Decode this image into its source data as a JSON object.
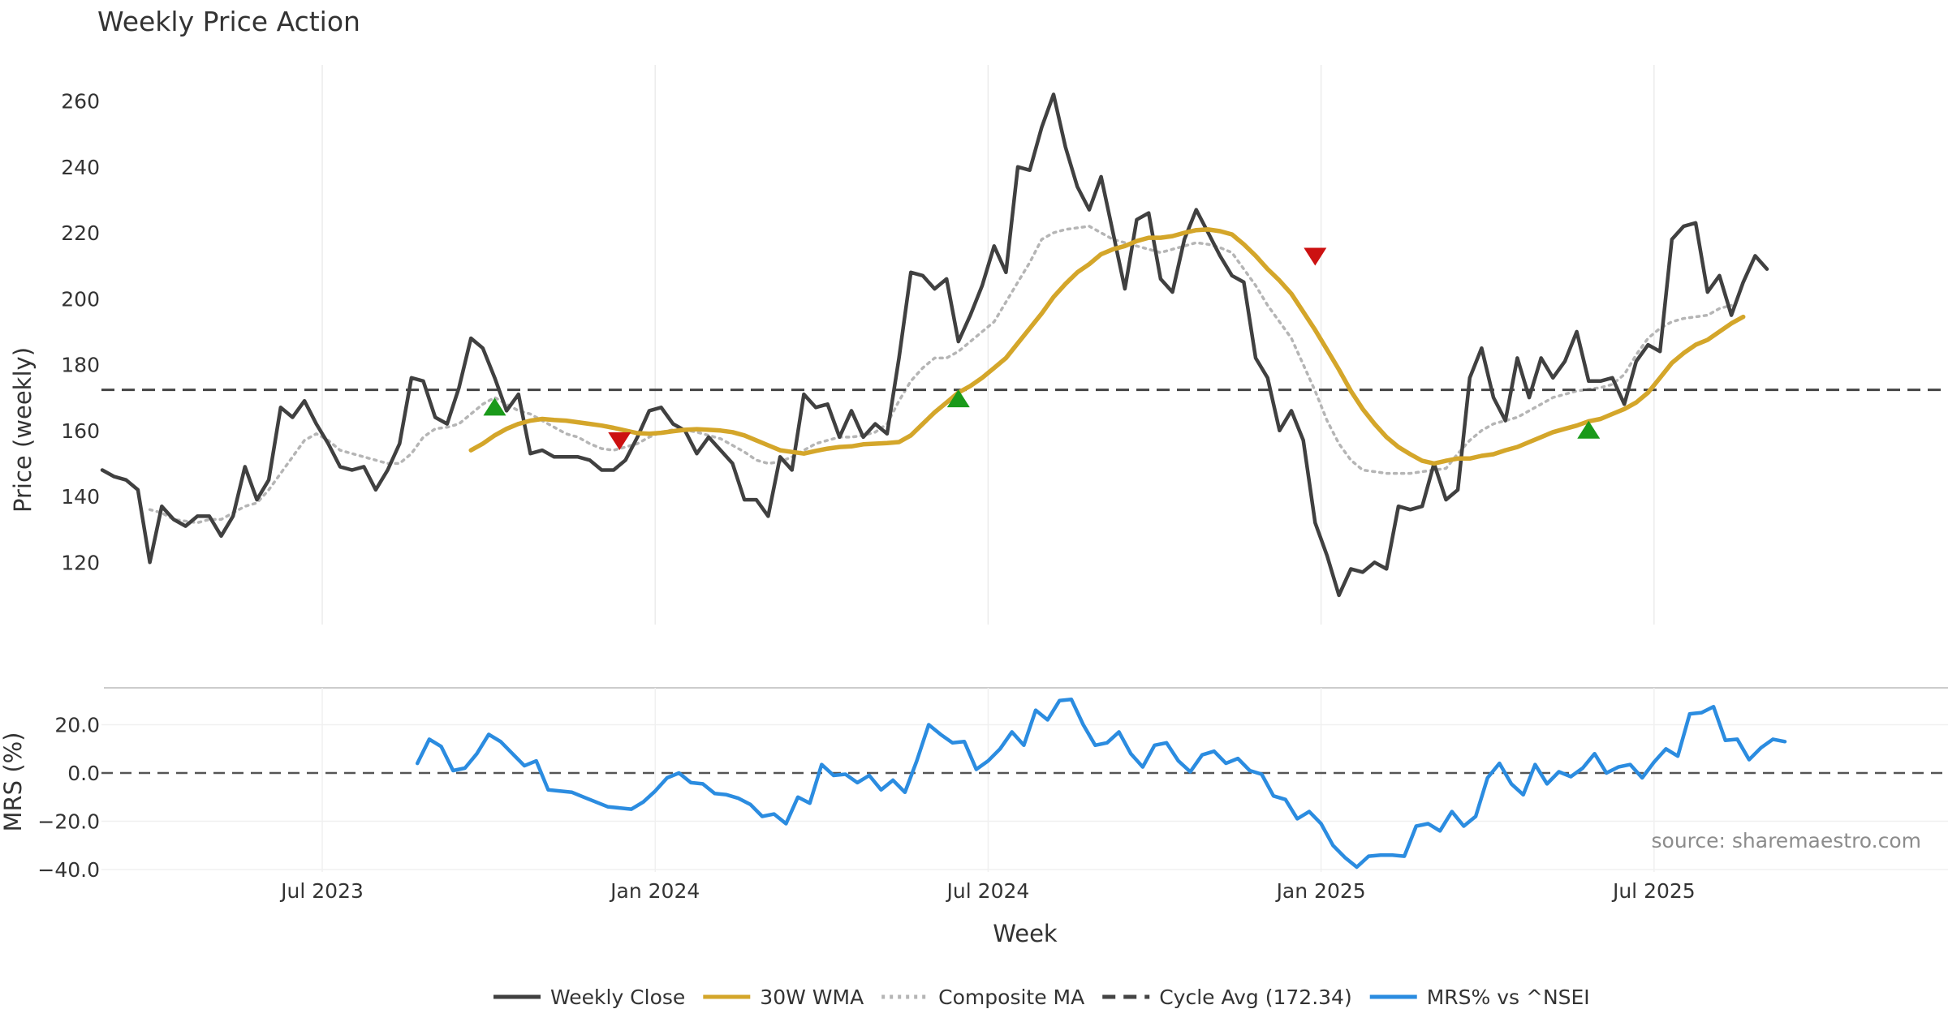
{
  "chart_data": [
    {
      "type": "line",
      "title": "Weekly Price Action",
      "xlabel": "Week",
      "ylabel": "Price (weekly)",
      "ylim": [
        100,
        270
      ],
      "yticks": [
        120,
        140,
        160,
        180,
        200,
        220,
        240,
        260
      ],
      "xlim": [
        0,
        157.5
      ],
      "xticks": [
        {
          "label": "Jul 2023",
          "x": 18.5
        },
        {
          "label": "Jan 2024",
          "x": 46.5
        },
        {
          "label": "Jul 2024",
          "x": 74.5
        },
        {
          "label": "Jan 2025",
          "x": 102.5
        },
        {
          "label": "Jul 2025",
          "x": 130.5
        }
      ],
      "grid": true,
      "cycle_avg": 172.34,
      "series": [
        {
          "name": "Weekly Close",
          "color": "#404040",
          "style": "solid",
          "x_start": 0,
          "values": [
            148,
            146,
            145,
            142,
            120,
            137,
            133,
            131,
            134,
            134,
            128,
            134,
            149,
            139,
            145,
            167,
            164,
            169,
            162,
            156,
            149,
            148,
            149,
            142,
            148,
            156,
            176,
            175,
            164,
            162,
            173,
            188,
            185,
            176,
            166,
            171,
            153,
            154,
            152,
            152,
            152,
            151,
            148,
            148,
            151,
            158,
            166,
            167,
            162,
            160,
            153,
            158,
            154,
            150,
            139,
            139,
            134,
            152,
            148,
            171,
            167,
            168,
            158,
            166,
            158,
            162,
            159,
            182,
            208,
            207,
            203,
            206,
            187,
            195,
            204,
            216,
            208,
            240,
            239,
            252,
            262,
            246,
            234,
            227,
            237,
            220,
            203,
            224,
            226,
            206,
            202,
            218,
            227,
            220,
            213,
            207,
            205,
            182,
            176,
            160,
            166,
            157,
            132,
            122,
            110,
            118,
            117,
            120,
            118,
            137,
            136,
            137,
            150,
            139,
            142,
            176,
            185,
            170,
            163,
            182,
            170,
            182,
            176,
            181,
            190,
            175,
            175,
            176,
            168,
            181,
            186,
            184,
            218,
            222,
            223,
            202,
            207,
            195,
            205,
            213,
            209
          ]
        },
        {
          "name": "30W WMA",
          "color": "#d4a62a",
          "style": "solid",
          "x_start": 31,
          "values": [
            154,
            156,
            158.5,
            160.5,
            162,
            163,
            163.5,
            163.2,
            163,
            162.5,
            162,
            161.5,
            160.8,
            160,
            159.2,
            159,
            159.3,
            159.8,
            160.2,
            160.4,
            160.2,
            160,
            159.5,
            158.5,
            157,
            155.5,
            154,
            153.5,
            153,
            153.8,
            154.5,
            155,
            155.2,
            155.8,
            156,
            156.2,
            156.5,
            158.5,
            162,
            165.5,
            168.5,
            171.5,
            173.5,
            176,
            179,
            182,
            186.5,
            191,
            195.5,
            200.5,
            204.5,
            208,
            210.5,
            213.5,
            215,
            216,
            217.5,
            218.5,
            218.5,
            219,
            220,
            220.8,
            221,
            220.5,
            219.5,
            216.5,
            213,
            209,
            205.5,
            201.5,
            196,
            190.5,
            184.5,
            178.5,
            172,
            166.5,
            162,
            158,
            155,
            152.8,
            150.8,
            150,
            150.8,
            151.5,
            151.5,
            152.3,
            152.8,
            154,
            155,
            156.5,
            158,
            159.5,
            160.5,
            161.5,
            162.8,
            163.5,
            165,
            166.5,
            168.5,
            171.5,
            176,
            180.5,
            183.5,
            186,
            187.5,
            190,
            192.5,
            194.5
          ]
        },
        {
          "name": "Composite MA",
          "color": "#b5b5b5",
          "style": "dotted",
          "x_start": 4,
          "values": [
            136,
            135,
            133,
            132.5,
            132,
            133,
            133,
            135,
            137,
            138,
            142,
            147,
            152,
            157,
            159,
            157,
            154,
            153,
            152,
            151,
            150,
            150,
            153,
            158,
            160.5,
            161,
            162,
            165,
            168,
            170,
            168,
            166,
            165,
            163,
            161,
            159,
            158,
            156,
            154.5,
            154,
            155,
            156,
            158,
            159.5,
            160.2,
            160.2,
            159.5,
            158.5,
            157.5,
            155.5,
            153.5,
            151,
            150,
            150.5,
            152,
            154,
            156,
            157,
            158,
            158,
            158.5,
            159.5,
            162,
            169,
            175,
            179,
            182,
            182,
            184,
            187,
            190,
            193,
            199,
            205,
            211,
            218,
            220,
            221,
            221.5,
            222,
            220,
            218,
            217,
            216,
            215,
            214,
            215,
            216,
            217,
            216.5,
            215.5,
            214,
            209,
            204,
            198,
            193,
            188,
            180,
            172,
            163,
            156,
            151,
            148,
            147.5,
            147,
            147,
            147,
            147.5,
            148,
            148.5,
            153,
            157,
            160,
            162,
            163,
            164,
            166,
            168,
            170,
            171,
            172,
            172.5,
            173,
            174,
            177,
            183,
            188,
            191,
            193,
            194,
            194.5,
            195,
            197,
            198
          ]
        },
        {
          "name": "Cycle Avg (172.34)",
          "color": "#444444",
          "style": "dashed",
          "constant": 172.34
        }
      ],
      "markers": [
        {
          "type": "buy",
          "x": 33,
          "y": 167,
          "color": "#1a9a1a"
        },
        {
          "type": "sell",
          "x": 43.5,
          "y": 157,
          "color": "#cc1111"
        },
        {
          "type": "buy",
          "x": 72,
          "y": 169.5,
          "color": "#1a9a1a"
        },
        {
          "type": "sell",
          "x": 102,
          "y": 213,
          "color": "#cc1111"
        },
        {
          "type": "buy",
          "x": 125,
          "y": 160,
          "color": "#1a9a1a"
        }
      ]
    },
    {
      "type": "line",
      "title": "",
      "xlabel": "Week",
      "ylabel": "MRS (%)",
      "ylim": [
        -42,
        34
      ],
      "yticks": [
        "20.0",
        "0.0",
        "−20.0",
        "−40.0"
      ],
      "ytick_values": [
        20,
        0,
        -20,
        -40
      ],
      "zero_line": 0,
      "series": [
        {
          "name": "MRS% vs ^NSEI",
          "color": "#2b8ce0",
          "style": "solid",
          "x_start": 26.5,
          "values": [
            4,
            14,
            11,
            1,
            2,
            8,
            16,
            13,
            8,
            3,
            5,
            -7,
            -7.5,
            -8,
            -10,
            -12,
            -14,
            -14.5,
            -15,
            -12,
            -7.5,
            -2,
            0,
            -4,
            -4.5,
            -8.5,
            -9,
            -10.5,
            -13,
            -18,
            -17,
            -21,
            -10,
            -12.5,
            3.5,
            -1,
            -0.5,
            -4,
            -1,
            -7,
            -3,
            -8,
            5,
            20,
            16,
            12.5,
            13,
            1.5,
            5,
            10,
            17,
            11.5,
            26,
            22,
            30,
            30.5,
            20,
            11.5,
            12.5,
            17,
            8,
            2.5,
            11.5,
            12.5,
            5,
            0.5,
            7.5,
            9,
            4,
            6,
            1,
            -0.5,
            -9.5,
            -11,
            -19,
            -16,
            -21,
            -30,
            -35,
            -39,
            -34.5,
            -34,
            -34,
            -34.5,
            -22,
            -21,
            -24,
            -16,
            -22,
            -18,
            -2,
            4,
            -4.5,
            -9,
            3.5,
            -4.5,
            0.5,
            -1.5,
            2,
            8,
            0,
            2.5,
            3.5,
            -2,
            4.5,
            10,
            7,
            24.5,
            25,
            27.5,
            13.5,
            14,
            5.5,
            10.5,
            14,
            13
          ]
        }
      ],
      "annotation": "source: sharemaestro.com"
    }
  ],
  "legend": [
    {
      "label": "Weekly Close",
      "color": "#404040",
      "style": "solid"
    },
    {
      "label": "30W WMA",
      "color": "#d4a62a",
      "style": "solid"
    },
    {
      "label": "Composite MA",
      "color": "#b5b5b5",
      "style": "dotted"
    },
    {
      "label": "Cycle Avg (172.34)",
      "color": "#444444",
      "style": "dashed"
    },
    {
      "label": "MRS% vs ^NSEI",
      "color": "#2b8ce0",
      "style": "solid"
    }
  ]
}
